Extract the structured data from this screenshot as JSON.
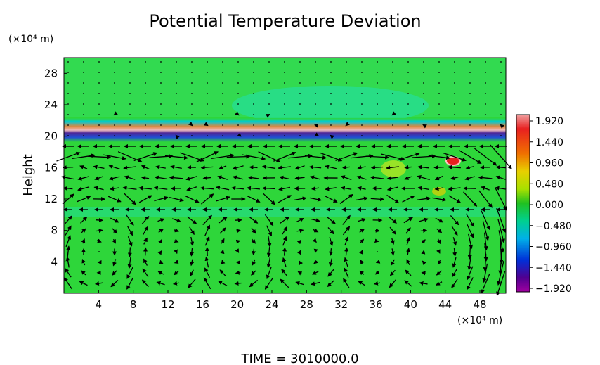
{
  "chart_data": {
    "type": "heatmap",
    "title": "Potential Temperature Deviation",
    "ylabel": "Height",
    "x_unit": "(×10⁴ m)",
    "y_unit": "(×10⁴ m)",
    "xlim": [
      0,
      51
    ],
    "ylim": [
      0,
      30
    ],
    "xticks": [
      "4",
      "8",
      "12",
      "16",
      "20",
      "24",
      "28",
      "32",
      "36",
      "40",
      "44",
      "48"
    ],
    "yticks": [
      "4",
      "8",
      "12",
      "16",
      "20",
      "24",
      "28"
    ],
    "xtick_values": [
      4,
      8,
      12,
      16,
      20,
      24,
      28,
      32,
      36,
      40,
      44,
      48
    ],
    "ytick_values": [
      4,
      8,
      12,
      16,
      20,
      24,
      28
    ],
    "colorbar": {
      "labels": [
        "1.920",
        "1.440",
        "0.960",
        "0.480",
        "0.000",
        "−0.480",
        "−0.960",
        "−1.440",
        "−1.920"
      ],
      "values": [
        1.92,
        1.44,
        0.96,
        0.48,
        0.0,
        -0.48,
        -0.96,
        -1.44,
        -1.92
      ],
      "colors": [
        "#e87878",
        "#e82020",
        "#f0a000",
        "#e8e800",
        "#20c020",
        "#00d8a0",
        "#00a8e8",
        "#0020d0",
        "#500090",
        "#900090"
      ]
    },
    "background_color": "#2ed63a",
    "vector_field": true,
    "footer": "TIME = 3010000.0"
  }
}
